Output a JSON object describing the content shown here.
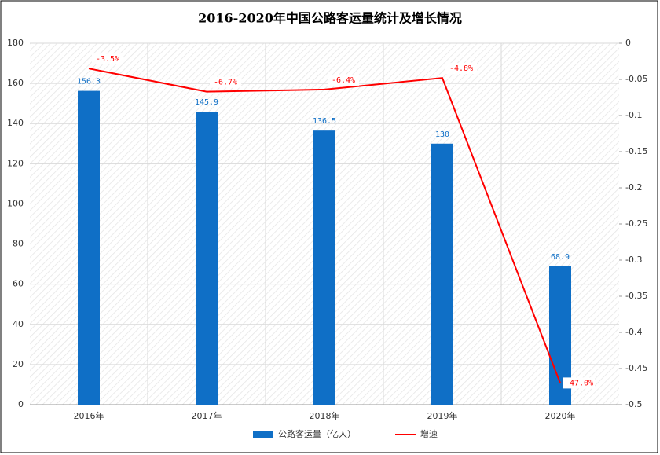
{
  "chart_data": {
    "type": "bar",
    "title": "2016-2020年中国公路客运量统计及增长情况",
    "categories": [
      "2016年",
      "2017年",
      "2018年",
      "2019年",
      "2020年"
    ],
    "series": [
      {
        "name": "公路客运量（亿人）",
        "color": "#0f6fc6",
        "values": [
          156.3,
          145.9,
          136.5,
          130,
          68.9
        ]
      },
      {
        "name": "增速",
        "type": "line",
        "axis": "y2",
        "color": "#ff0000",
        "values": [
          -0.035,
          -0.067,
          -0.064,
          -0.048,
          -0.47
        ],
        "value_labels": [
          "-3.5%",
          "-6.7%",
          "-6.4%",
          "-4.8%",
          "-47.0%"
        ]
      }
    ],
    "ylim": [
      0,
      180
    ],
    "yticks": [
      0,
      20,
      40,
      60,
      80,
      100,
      120,
      140,
      160,
      180
    ],
    "y2lim": [
      -0.5,
      0
    ],
    "y2ticks": [
      0,
      -0.05,
      -0.1,
      -0.15,
      -0.2,
      -0.25,
      -0.3,
      -0.35,
      -0.4,
      -0.45,
      -0.5
    ],
    "grid": true,
    "legend": "bottom"
  }
}
